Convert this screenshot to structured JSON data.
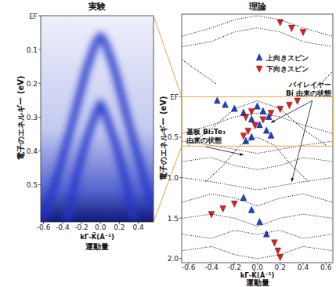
{
  "chart_data": [
    {
      "type": "line",
      "title": "実験",
      "xlabel": [
        "kΓ̄-K̄(Å⁻¹)",
        "運動量"
      ],
      "ylabel": "電子のエネルギー (eV)",
      "xlim": [
        -0.63,
        0.56
      ],
      "ylim": [
        0,
        0.61
      ],
      "xticks": [
        -0.6,
        -0.4,
        -0.2,
        {
          "value": 0,
          "label": "0.0"
        },
        0.2,
        0.4
      ],
      "yticks": [
        {
          "value": 0,
          "label": "EF"
        },
        0.1,
        0.2,
        0.3,
        0.4,
        0.5
      ],
      "grid": false,
      "line_style": "blurred",
      "color": "#2234c8",
      "series": [
        {
          "x": [
            -0.6,
            -0.45,
            -0.3,
            -0.15,
            -0.05,
            0,
            0.05,
            0.15,
            0.3,
            0.45,
            0.55
          ],
          "values": [
            0.6,
            0.47,
            0.32,
            0.16,
            0.08,
            0.06,
            0.08,
            0.16,
            0.32,
            0.47,
            0.57
          ]
        },
        {
          "x": [
            -0.35,
            -0.25,
            -0.15,
            -0.05,
            0,
            0.05,
            0.15,
            0.25,
            0.35
          ],
          "values": [
            0.6,
            0.47,
            0.37,
            0.29,
            0.26,
            0.29,
            0.37,
            0.47,
            0.6
          ]
        }
      ]
    },
    {
      "type": "scatter",
      "title": "理論",
      "xlabel": [
        "kΓ̄-K̄(Å⁻¹)",
        "運動量"
      ],
      "ylabel": "電子のエネルギー (eV)",
      "xlim": [
        -0.66,
        0.66
      ],
      "ylim": [
        -1.02,
        2.05
      ],
      "xticks": [
        -0.6,
        -0.4,
        -0.2,
        {
          "value": 0,
          "label": "0.0"
        },
        0.2,
        0.4,
        0.6
      ],
      "yticks": [
        {
          "value": 0,
          "label": "EF"
        },
        0.5,
        {
          "value": 1,
          "label": "1.0"
        },
        1.5,
        {
          "value": 2,
          "label": "2.0"
        }
      ],
      "grid": false,
      "legend": "top",
      "series": [
        {
          "name": "上向きスピン",
          "color": "#1c3fd0",
          "marker": "triangle-up",
          "x": [
            -0.35,
            -0.28,
            -0.2,
            -0.12,
            -0.05,
            0.02,
            0.08,
            0.12,
            0.0,
            0.05,
            0.1,
            -0.05,
            -0.1,
            -0.12,
            -0.05,
            0.02,
            0.08
          ],
          "values": [
            0.05,
            0.1,
            0.15,
            0.2,
            0.28,
            0.35,
            0.42,
            0.48,
            0.12,
            0.18,
            0.25,
            0.5,
            0.55,
            1.25,
            1.4,
            1.55,
            1.7
          ]
        },
        {
          "name": "下向きスピン",
          "color": "#e0201c",
          "marker": "triangle-down",
          "x": [
            0.35,
            0.28,
            0.2,
            0.12,
            0.05,
            -0.02,
            -0.08,
            -0.12,
            -0.05,
            -0.1,
            0.2,
            0.3,
            0.4,
            -0.4,
            -0.3,
            -0.2,
            0.15,
            0.18,
            0.2
          ],
          "values": [
            0.05,
            0.1,
            0.15,
            0.2,
            0.28,
            0.35,
            0.42,
            0.48,
            0.18,
            0.25,
            -0.92,
            -0.85,
            -0.8,
            1.45,
            1.38,
            1.32,
            1.8,
            1.9,
            1.98
          ]
        },
        {
          "type": "line",
          "line_style": "dotted",
          "color": "#000000",
          "x": [
            -0.65,
            -0.4,
            -0.2,
            0,
            0.2,
            0.4,
            0.65
          ],
          "values": [
            -0.75,
            -0.85,
            -0.95,
            -1.0,
            -0.95,
            -0.85,
            -0.75
          ]
        },
        {
          "type": "line",
          "line_style": "dotted",
          "color": "#000000",
          "x": [
            -0.65,
            -0.4,
            -0.2,
            0,
            0.2,
            0.4,
            0.65
          ],
          "values": [
            -0.62,
            -0.68,
            -0.8,
            -0.85,
            -0.8,
            -0.68,
            -0.62
          ]
        },
        {
          "type": "line",
          "line_style": "dotted",
          "color": "#000000",
          "x": [
            -0.65,
            -0.5,
            -0.35
          ],
          "values": [
            -0.45,
            -0.3,
            -0.15
          ]
        },
        {
          "type": "line",
          "line_style": "dotted",
          "color": "#000000",
          "x": [
            0.5,
            0.58,
            0.65
          ],
          "values": [
            -0.1,
            -0.2,
            -0.3
          ]
        },
        {
          "type": "line",
          "line_style": "dotted",
          "color": "#000000",
          "x": [
            -0.6,
            -0.4,
            -0.2,
            0,
            0.2,
            0.4,
            0.6
          ],
          "values": [
            0.6,
            0.4,
            0.15,
            0.05,
            0.15,
            0.4,
            0.6
          ]
        },
        {
          "type": "line",
          "line_style": "dotted",
          "color": "#000000",
          "x": [
            -0.65,
            -0.4,
            -0.2,
            0,
            0.2,
            0.4,
            0.65
          ],
          "values": [
            0.45,
            0.35,
            0.25,
            0.2,
            0.25,
            0.35,
            0.45
          ]
        },
        {
          "type": "line",
          "line_style": "dotted",
          "color": "#000000",
          "x": [
            -0.65,
            -0.4,
            -0.2,
            0,
            0.2,
            0.4,
            0.65
          ],
          "values": [
            0.55,
            0.6,
            0.65,
            0.7,
            0.65,
            0.6,
            0.55
          ]
        },
        {
          "type": "line",
          "line_style": "dotted",
          "color": "#000000",
          "x": [
            -0.65,
            -0.4,
            -0.2,
            0,
            0.2,
            0.4,
            0.65
          ],
          "values": [
            0.8,
            0.75,
            0.85,
            0.9,
            0.85,
            0.75,
            0.8
          ]
        },
        {
          "type": "line",
          "line_style": "dotted",
          "color": "#000000",
          "x": [
            -0.45,
            -0.3,
            -0.15,
            0,
            0.15,
            0.3,
            0.45
          ],
          "values": [
            1.05,
            0.85,
            0.6,
            0.5,
            0.6,
            0.85,
            1.05
          ]
        },
        {
          "type": "line",
          "line_style": "dotted",
          "color": "#000000",
          "x": [
            -0.65,
            -0.4,
            -0.2,
            0,
            0.2,
            0.4,
            0.65
          ],
          "values": [
            1.0,
            1.05,
            1.1,
            1.15,
            1.1,
            1.05,
            1.0
          ]
        },
        {
          "type": "line",
          "line_style": "dotted",
          "color": "#000000",
          "x": [
            -0.65,
            -0.4,
            -0.2,
            0,
            0.2,
            0.4,
            0.65
          ],
          "values": [
            1.3,
            1.2,
            1.25,
            1.35,
            1.25,
            1.2,
            1.3
          ]
        },
        {
          "type": "line",
          "line_style": "dotted",
          "color": "#000000",
          "x": [
            -0.65,
            -0.4,
            -0.2,
            0,
            0.2,
            0.4,
            0.65
          ],
          "values": [
            1.5,
            1.45,
            1.5,
            1.6,
            1.5,
            1.45,
            1.5
          ]
        },
        {
          "type": "line",
          "line_style": "dotted",
          "color": "#000000",
          "x": [
            -0.65,
            -0.4,
            -0.2,
            0,
            0.2,
            0.4,
            0.65
          ],
          "values": [
            1.7,
            1.75,
            1.65,
            1.7,
            1.65,
            1.75,
            1.7
          ]
        },
        {
          "type": "line",
          "line_style": "dotted",
          "color": "#000000",
          "x": [
            -0.65,
            -0.4,
            -0.2,
            0,
            0.2,
            0.4,
            0.65
          ],
          "values": [
            1.9,
            1.85,
            1.95,
            2.0,
            1.95,
            1.85,
            1.9
          ]
        }
      ],
      "annotations": [
        {
          "text": [
            "基板 Bi₂Te₃",
            "由来の状態"
          ]
        },
        {
          "text": [
            "バイレイヤー",
            "Bi 由来の状態"
          ]
        }
      ]
    }
  ]
}
